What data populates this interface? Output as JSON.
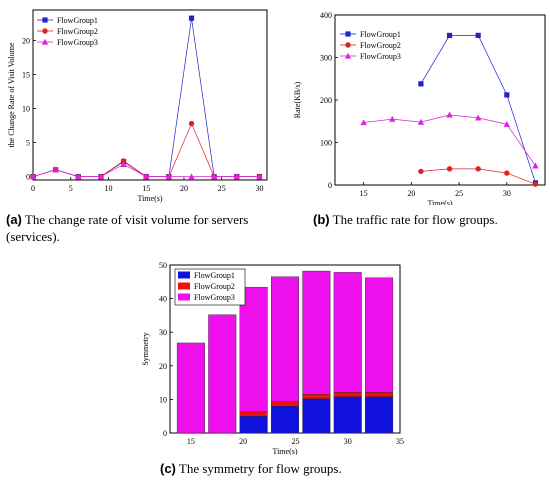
{
  "chart_data": [
    {
      "type": "line",
      "xlabel": "Time(s)",
      "ylabel": "the Change Rate of Visit Volume",
      "xlim": [
        0,
        31
      ],
      "ylim": [
        -0.5,
        24.5
      ],
      "xticks": [
        0,
        5,
        10,
        15,
        20,
        25,
        30
      ],
      "yticks": [
        0,
        5,
        10,
        15,
        20
      ],
      "legend": "top-left",
      "series": [
        {
          "name": "FlowGroup1",
          "color": "#2222cc",
          "marker": "square",
          "x": [
            0,
            3,
            6,
            9,
            12,
            15,
            18,
            21,
            24,
            27,
            30
          ],
          "values": [
            0,
            1.0,
            0,
            0,
            2.2,
            0,
            0,
            23.3,
            0,
            0,
            0
          ]
        },
        {
          "name": "FlowGroup2",
          "color": "#dd2222",
          "marker": "circle",
          "x": [
            0,
            3,
            6,
            9,
            12,
            15,
            18,
            21,
            24,
            27,
            30
          ],
          "values": [
            0,
            1.0,
            0,
            0,
            2.3,
            0,
            0,
            7.8,
            0,
            0,
            0
          ]
        },
        {
          "name": "FlowGroup3",
          "color": "#dd22dd",
          "marker": "triangle",
          "x": [
            0,
            3,
            6,
            9,
            12,
            15,
            18,
            21,
            24,
            27,
            30
          ],
          "values": [
            0,
            1.0,
            0,
            0,
            1.8,
            0,
            0,
            0,
            0,
            0,
            0
          ]
        }
      ],
      "caption_label": "(a)",
      "caption_text": "The change rate of visit volume for servers (services)."
    },
    {
      "type": "line",
      "xlabel": "Time(s)",
      "ylabel": "Rate(KB/s)",
      "xlim": [
        12,
        34
      ],
      "ylim": [
        0,
        400
      ],
      "xticks": [
        15,
        20,
        25,
        30
      ],
      "yticks": [
        0,
        100,
        200,
        300,
        400
      ],
      "legend": "top-left",
      "series": [
        {
          "name": "FlowGroup1",
          "color": "#2222cc",
          "marker": "square",
          "x": [
            21,
            24,
            27,
            30,
            33
          ],
          "values": [
            238,
            352,
            352,
            212,
            5
          ]
        },
        {
          "name": "FlowGroup2",
          "color": "#dd2222",
          "marker": "circle",
          "x": [
            21,
            24,
            27,
            30,
            33
          ],
          "values": [
            32,
            38,
            38,
            28,
            2
          ]
        },
        {
          "name": "FlowGroup3",
          "color": "#dd22dd",
          "marker": "triangle",
          "x": [
            15,
            18,
            21,
            24,
            27,
            30,
            33
          ],
          "values": [
            147,
            155,
            148,
            165,
            158,
            143,
            45
          ]
        }
      ],
      "caption_label": "(b)",
      "caption_text": "The traffic rate for flow groups."
    },
    {
      "type": "bar",
      "stacked": true,
      "xlabel": "Time(s)",
      "ylabel": "Symmetry",
      "xlim": [
        13,
        35
      ],
      "ylim": [
        0,
        50
      ],
      "xticks": [
        15,
        20,
        25,
        30,
        35
      ],
      "yticks": [
        0,
        10,
        20,
        30,
        40,
        50
      ],
      "legend": "top-left",
      "x": [
        15,
        18,
        21,
        24,
        27,
        30,
        33
      ],
      "series": [
        {
          "name": "FlowGroup1",
          "color": "#1111dd",
          "values": [
            0,
            0,
            5.0,
            8.0,
            10.2,
            10.8,
            10.8
          ]
        },
        {
          "name": "FlowGroup2",
          "color": "#ee1111",
          "values": [
            0,
            0,
            1.3,
            1.3,
            1.3,
            1.3,
            1.3
          ]
        },
        {
          "name": "FlowGroup3",
          "color": "#ee11ee",
          "values": [
            26.8,
            35.2,
            37.1,
            37.2,
            36.7,
            35.7,
            34.1
          ]
        }
      ],
      "caption_label": "(c)",
      "caption_text": "The symmetry for flow groups."
    }
  ]
}
